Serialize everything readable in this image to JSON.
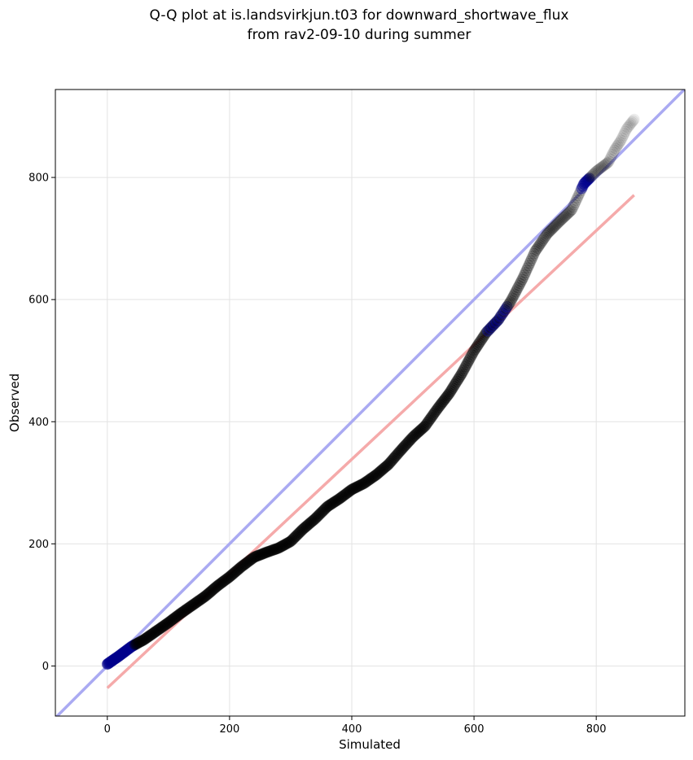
{
  "chart_data": {
    "type": "scatter",
    "title": "Q-Q plot at is.landsvirkjun.t03 for downward_shortwave_flux",
    "subtitle": "from rav2-09-10 during summer",
    "xlabel": "Simulated",
    "ylabel": "Observed",
    "xlim": [
      -85,
      945
    ],
    "ylim": [
      -82,
      944
    ],
    "xticks": [
      0,
      200,
      400,
      600,
      800
    ],
    "yticks": [
      0,
      200,
      400,
      600,
      800
    ],
    "xtick_labels": [
      "0",
      "200",
      "400",
      "600",
      "800"
    ],
    "ytick_labels": [
      "0",
      "200",
      "400",
      "600",
      "800"
    ],
    "grid": true,
    "reference_lines": [
      {
        "kind": "identity",
        "color": "#aaaaf2",
        "x": [
          -85,
          945
        ],
        "y": [
          -85,
          945
        ]
      },
      {
        "kind": "fit",
        "color": "#f5aaaa",
        "x": [
          0,
          862
        ],
        "y": [
          -36,
          771
        ]
      }
    ],
    "quantile_curve_x": [
      0,
      10,
      20,
      40,
      60,
      80,
      100,
      120,
      140,
      160,
      180,
      200,
      220,
      240,
      260,
      280,
      300,
      320,
      340,
      360,
      380,
      400,
      420,
      440,
      460,
      480,
      500,
      520,
      540,
      560,
      580,
      600,
      620,
      640,
      660,
      680,
      700,
      720,
      740,
      760,
      780,
      800,
      820,
      830,
      840,
      850,
      862
    ],
    "quantile_curve_y": [
      3,
      10,
      17,
      32,
      43,
      57,
      71,
      86,
      100,
      114,
      131,
      146,
      163,
      178,
      186,
      193,
      204,
      224,
      241,
      261,
      274,
      289,
      299,
      313,
      330,
      353,
      375,
      393,
      421,
      447,
      479,
      516,
      546,
      567,
      597,
      635,
      679,
      708,
      728,
      747,
      790,
      810,
      825,
      845,
      860,
      880,
      895
    ],
    "point_color": "#000000",
    "highlight_color": "#00008b"
  }
}
